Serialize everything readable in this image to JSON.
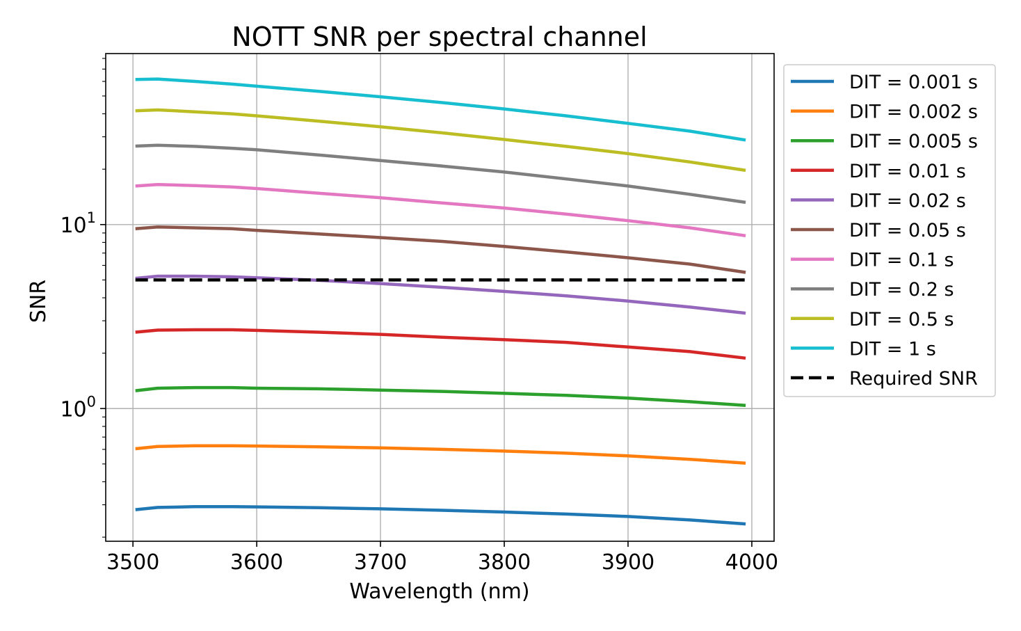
{
  "chart_data": {
    "type": "line",
    "title": "NOTT SNR per spectral channel",
    "xlabel": "Wavelength (nm)",
    "ylabel": "SNR",
    "x_scale": "linear",
    "y_scale": "log",
    "xlim": [
      3478,
      4018
    ],
    "ylim": [
      0.19,
      85
    ],
    "grid": true,
    "legend_position": "outside-right-top",
    "x_ticks": [
      3500,
      3600,
      3700,
      3800,
      3900,
      4000
    ],
    "x_tick_labels": [
      "3500",
      "3600",
      "3700",
      "3800",
      "3900",
      "4000"
    ],
    "y_major_ticks": [
      1,
      10
    ],
    "y_major_tick_labels": [
      {
        "base": "10",
        "exp": "0"
      },
      {
        "base": "10",
        "exp": "1"
      }
    ],
    "x": [
      3502,
      3520,
      3550,
      3580,
      3600,
      3650,
      3700,
      3750,
      3800,
      3850,
      3900,
      3950,
      3995
    ],
    "series": [
      {
        "name": "DIT = 0.001 s",
        "color": "#1f77b4",
        "style": "solid",
        "values": [
          0.282,
          0.29,
          0.293,
          0.293,
          0.292,
          0.289,
          0.285,
          0.28,
          0.274,
          0.267,
          0.259,
          0.248,
          0.236
        ]
      },
      {
        "name": "DIT = 0.002 s",
        "color": "#ff7f0e",
        "style": "solid",
        "values": [
          0.605,
          0.622,
          0.628,
          0.628,
          0.626,
          0.619,
          0.611,
          0.6,
          0.587,
          0.572,
          0.553,
          0.53,
          0.505
        ]
      },
      {
        "name": "DIT = 0.005 s",
        "color": "#2ca02c",
        "style": "solid",
        "values": [
          1.25,
          1.29,
          1.3,
          1.3,
          1.29,
          1.28,
          1.26,
          1.24,
          1.21,
          1.18,
          1.14,
          1.09,
          1.04
        ]
      },
      {
        "name": "DIT = 0.01 s",
        "color": "#d62728",
        "style": "solid",
        "values": [
          2.6,
          2.67,
          2.68,
          2.68,
          2.66,
          2.6,
          2.53,
          2.44,
          2.37,
          2.29,
          2.16,
          2.04,
          1.88
        ]
      },
      {
        "name": "DIT = 0.02 s",
        "color": "#9467bd",
        "style": "solid",
        "values": [
          5.1,
          5.24,
          5.24,
          5.2,
          5.14,
          4.98,
          4.78,
          4.56,
          4.33,
          4.1,
          3.84,
          3.56,
          3.3
        ]
      },
      {
        "name": "DIT = 0.05 s",
        "color": "#8c564b",
        "style": "solid",
        "values": [
          9.5,
          9.7,
          9.6,
          9.5,
          9.3,
          8.9,
          8.5,
          8.1,
          7.6,
          7.1,
          6.6,
          6.1,
          5.5
        ]
      },
      {
        "name": "DIT = 0.1 s",
        "color": "#e377c2",
        "style": "solid",
        "values": [
          16.2,
          16.5,
          16.3,
          16.0,
          15.7,
          14.8,
          14.0,
          13.1,
          12.3,
          11.4,
          10.5,
          9.6,
          8.7
        ]
      },
      {
        "name": "DIT = 0.2 s",
        "color": "#7f7f7f",
        "style": "solid",
        "values": [
          26.7,
          27.0,
          26.6,
          26.0,
          25.5,
          23.9,
          22.3,
          20.8,
          19.3,
          17.7,
          16.2,
          14.6,
          13.2
        ]
      },
      {
        "name": "DIT = 0.5 s",
        "color": "#bcbd22",
        "style": "solid",
        "values": [
          41.5,
          42.0,
          41.0,
          40.0,
          39.0,
          36.5,
          34.0,
          31.5,
          29.0,
          26.6,
          24.3,
          21.9,
          19.7
        ]
      },
      {
        "name": "DIT = 1 s",
        "color": "#17becf",
        "style": "solid",
        "values": [
          61.5,
          61.8,
          60.0,
          58.0,
          56.5,
          53.0,
          49.5,
          46.0,
          42.5,
          39.0,
          35.5,
          32.2,
          28.8
        ]
      },
      {
        "name": "Required SNR",
        "color": "#000000",
        "style": "dashed",
        "values": [
          5,
          5,
          5,
          5,
          5,
          5,
          5,
          5,
          5,
          5,
          5,
          5,
          5
        ]
      }
    ]
  }
}
